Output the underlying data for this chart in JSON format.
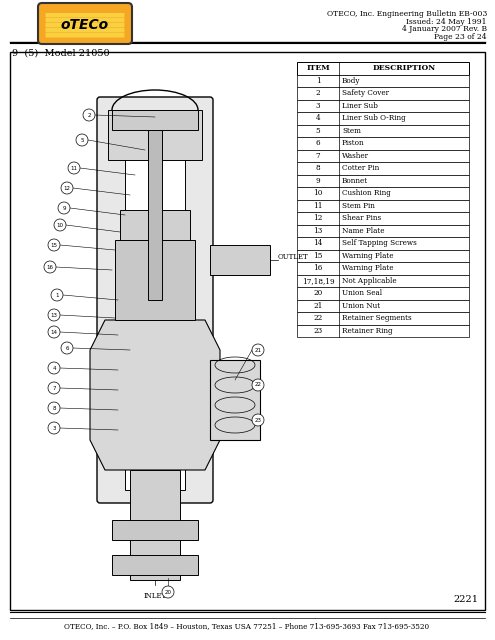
{
  "header_right_lines": [
    "OTECO, Inc. Engineering Bulletin EB-003",
    "Issued: 24 May 1991",
    "4 January 2007 Rev. B",
    "Page 23 of 24"
  ],
  "section_label": "9  (5)  Model 21050",
  "table_headers": [
    "ITEM",
    "DESCRIPTION"
  ],
  "table_rows": [
    [
      "1",
      "Body"
    ],
    [
      "2",
      "Safety Cover"
    ],
    [
      "3",
      "Liner Sub"
    ],
    [
      "4",
      "Liner Sub O-Ring"
    ],
    [
      "5",
      "Stem"
    ],
    [
      "6",
      "Piston"
    ],
    [
      "7",
      "Washer"
    ],
    [
      "8",
      "Cotter Pin"
    ],
    [
      "9",
      "Bonnet"
    ],
    [
      "10",
      "Cushion Ring"
    ],
    [
      "11",
      "Stem Pin"
    ],
    [
      "12",
      "Shear Pins"
    ],
    [
      "13",
      "Name Plate"
    ],
    [
      "14",
      "Self Tapping Screws"
    ],
    [
      "15",
      "Warning Plate"
    ],
    [
      "16",
      "Warning Plate"
    ],
    [
      "17,18,19",
      "Not Applicable"
    ],
    [
      "20",
      "Union Seal"
    ],
    [
      "21",
      "Union Nut"
    ],
    [
      "22",
      "Retainer Segments"
    ],
    [
      "23",
      "Retainer Ring"
    ]
  ],
  "footer_text": "OTECO, Inc. – P.O. Box 1849 – Houston, Texas USA 77251 – Phone 713-695-3693 Fax 713-695-3520",
  "drawing_number": "2221",
  "outlet_label": "OUTLET",
  "inlet_label": "INLET",
  "bg_color": "#ffffff",
  "border_color": "#000000",
  "text_color": "#000000",
  "logo_orange": "#f5a623",
  "logo_yellow": "#f8d040",
  "logo_red": "#c0392b",
  "logo_black": "#000000"
}
